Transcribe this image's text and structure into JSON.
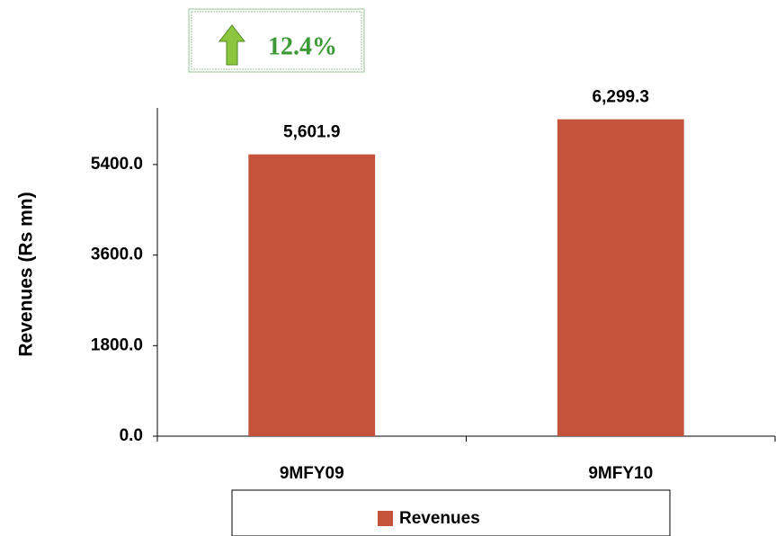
{
  "chart_data": {
    "type": "bar",
    "categories": [
      "9MFY09",
      "9MFY10"
    ],
    "series": [
      {
        "name": "Revenues",
        "color": "#c5533a",
        "values": [
          5601.9,
          6299.3
        ],
        "value_labels": [
          "5,601.9",
          "6,299.3"
        ]
      }
    ],
    "ylabel": "Revenues (Rs mn)",
    "ylim": [
      0,
      6500
    ],
    "yticks": [
      {
        "value": 0,
        "label": "0.0"
      },
      {
        "value": 1800,
        "label": "1800.0"
      },
      {
        "value": 3600,
        "label": "3600.0"
      },
      {
        "value": 5400,
        "label": "5400.0"
      }
    ],
    "annotation": "12.4%",
    "grid": false,
    "legend": "bottom"
  }
}
